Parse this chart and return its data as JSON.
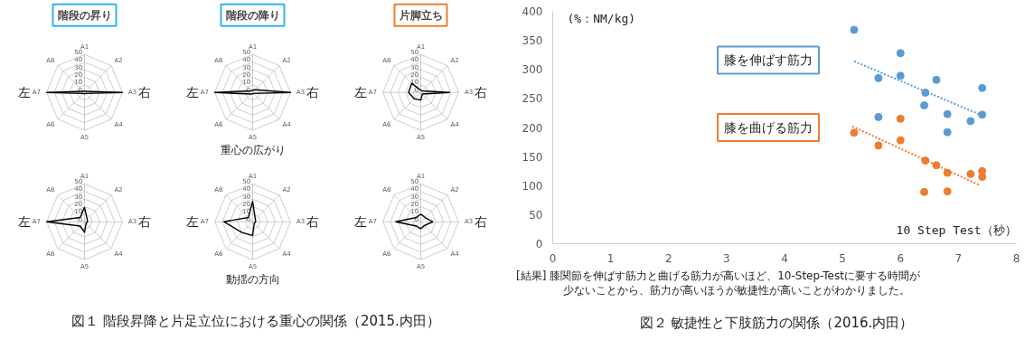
{
  "chart_data": [
    {
      "type": "radar",
      "title": "階段の昇り",
      "categories": [
        "A1",
        "A2",
        "A3",
        "A4",
        "A5",
        "A6",
        "A7",
        "A8"
      ],
      "ylim": [
        0,
        50
      ],
      "yticks": [
        0,
        10,
        20,
        30,
        40,
        50
      ],
      "series": [
        {
          "color": "#000000",
          "values": [
            2,
            2,
            50,
            2,
            2,
            2,
            50,
            2
          ]
        }
      ],
      "annotations": [
        "左",
        "右"
      ]
    },
    {
      "type": "radar",
      "title": "階段の降り",
      "categories": [
        "A1",
        "A2",
        "A3",
        "A4",
        "A5",
        "A6",
        "A7",
        "A8"
      ],
      "ylim": [
        0,
        50
      ],
      "yticks": [
        0,
        10,
        20,
        30,
        40,
        50
      ],
      "series": [
        {
          "color": "#000000",
          "values": [
            3,
            5,
            50,
            2,
            2,
            3,
            50,
            3
          ]
        }
      ],
      "annotations": [
        "左",
        "右",
        "重心の広がり"
      ]
    },
    {
      "type": "radar",
      "title": "片脚立ち",
      "categories": [
        "A1",
        "A2",
        "A3",
        "A4",
        "A5",
        "A6",
        "A7",
        "A8"
      ],
      "ylim": [
        0,
        50
      ],
      "yticks": [
        0,
        10,
        20,
        30,
        40,
        50
      ],
      "series": [
        {
          "color": "#000000",
          "values": [
            3,
            3,
            38,
            3,
            10,
            12,
            16,
            17
          ]
        }
      ],
      "annotations": [
        "左",
        "右"
      ]
    },
    {
      "type": "radar",
      "categories": [
        "A1",
        "A2",
        "A3",
        "A4",
        "A5",
        "A6",
        "A7",
        "A8"
      ],
      "ylim": [
        0,
        50
      ],
      "yticks": [
        0,
        10,
        20,
        30,
        40,
        50
      ],
      "series": [
        {
          "color": "#000000",
          "values": [
            19,
            5,
            4,
            3,
            14,
            8,
            50,
            8
          ]
        }
      ],
      "annotations": [
        "左",
        "右"
      ]
    },
    {
      "type": "radar",
      "categories": [
        "A1",
        "A2",
        "A3",
        "A4",
        "A5",
        "A6",
        "A7",
        "A8"
      ],
      "ylim": [
        0,
        50
      ],
      "yticks": [
        0,
        10,
        20,
        30,
        40,
        50
      ],
      "series": [
        {
          "color": "#000000",
          "values": [
            27,
            5,
            4,
            3,
            18,
            20,
            38,
            8
          ]
        }
      ],
      "annotations": [
        "左",
        "右",
        "動揺の方向",
        "図１ 階段昇降と片足立位における重心の関係（2015.内田）"
      ]
    },
    {
      "type": "radar",
      "categories": [
        "A1",
        "A2",
        "A3",
        "A4",
        "A5",
        "A6",
        "A7",
        "A8"
      ],
      "ylim": [
        0,
        50
      ],
      "yticks": [
        0,
        10,
        20,
        30,
        40,
        50
      ],
      "series": [
        {
          "color": "#000000",
          "values": [
            10,
            8,
            16,
            7,
            9,
            8,
            33,
            8
          ]
        }
      ],
      "annotations": [
        "左",
        "右"
      ]
    },
    {
      "type": "scatter",
      "xlabel": "10 Step Test（秒）",
      "ylabel": "(%：NM/kg)",
      "xlim": [
        0,
        8
      ],
      "ylim": [
        0,
        400
      ],
      "xticks": [
        0,
        1,
        2,
        3,
        4,
        5,
        6,
        7,
        8
      ],
      "yticks": [
        0,
        50,
        100,
        150,
        200,
        250,
        300,
        350,
        400
      ],
      "series": [
        {
          "name": "膝を伸ばす筋力",
          "marker": "circle",
          "color": "#5b9bd5",
          "x": [
            5.2,
            5.62,
            5.62,
            6.0,
            6.0,
            6.43,
            6.41,
            6.62,
            6.81,
            6.81,
            7.21,
            7.41,
            7.41
          ],
          "values": [
            368,
            285,
            218,
            328,
            289,
            260,
            238,
            282,
            223,
            192,
            211,
            268,
            222
          ]
        },
        {
          "name": "膝を曲げる筋力",
          "marker": "circle",
          "color": "#ed7d31",
          "x": [
            5.2,
            5.62,
            6.0,
            6.0,
            6.43,
            6.62,
            6.81,
            6.41,
            6.81,
            7.21,
            7.41,
            7.41
          ],
          "values": [
            191,
            169,
            215,
            178,
            143,
            135,
            122,
            89,
            90,
            120,
            125,
            115
          ]
        },
        {
          "type": "line",
          "line_style": "dotted",
          "color": "#5b9bd5",
          "x": [
            5.2,
            7.38
          ],
          "values": [
            314,
            222
          ]
        },
        {
          "type": "line",
          "line_style": "dotted",
          "color": "#ed7d31",
          "x": [
            5.17,
            7.38
          ],
          "values": [
            202,
            100
          ]
        }
      ],
      "annotations": [
        "[結果] 膝関節を伸ばす筋力と曲げる筋力が高いほど、10-Step-Testに要する時間が",
        "少ないことから、筋力が高いほうが敏捷性が高いことがわかりました。",
        "図２ 敏捷性と下肢筋力の関係（2016.内田）"
      ]
    }
  ]
}
